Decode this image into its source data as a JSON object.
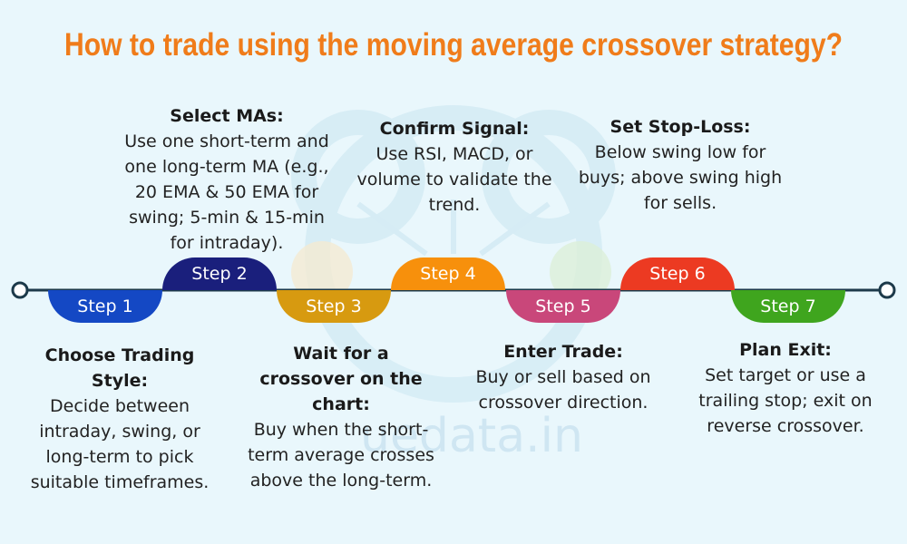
{
  "title": "How to trade using the moving average crossover strategy?",
  "watermark": {
    "text": "uedata.in",
    "color": "#cfe6f2"
  },
  "colors": {
    "title": "#f07c1a",
    "line": "#1d3a4a"
  },
  "steps": [
    {
      "label": "Step 1",
      "color": "#1448c4",
      "heading": "Choose Trading Style:",
      "body": "Decide between intraday, swing, or long-term to pick suitable timeframes."
    },
    {
      "label": "Step 2",
      "color": "#1a1f7c",
      "heading": "Select MAs:",
      "body": "Use one short-term and one long-term MA (e.g., 20 EMA & 50 EMA for swing; 5-min & 15-min for intraday)."
    },
    {
      "label": "Step 3",
      "color": "#d79a10",
      "heading": "Wait for a crossover on the chart:",
      "body": "Buy when the short-term average crosses above the long-term."
    },
    {
      "label": "Step 4",
      "color": "#f7900c",
      "heading": "Confirm Signal:",
      "body": "Use RSI, MACD, or volume to validate the trend."
    },
    {
      "label": "Step 5",
      "color": "#c9477a",
      "heading": "Enter Trade:",
      "body": "Buy or sell based on crossover direction."
    },
    {
      "label": "Step 6",
      "color": "#ec3a22",
      "heading": "Set Stop-Loss:",
      "body": "Below swing low for buys; above swing high for sells."
    },
    {
      "label": "Step 7",
      "color": "#3fa51e",
      "heading": "Plan Exit:",
      "body": "Set target or use a trailing stop; exit on reverse crossover."
    }
  ]
}
